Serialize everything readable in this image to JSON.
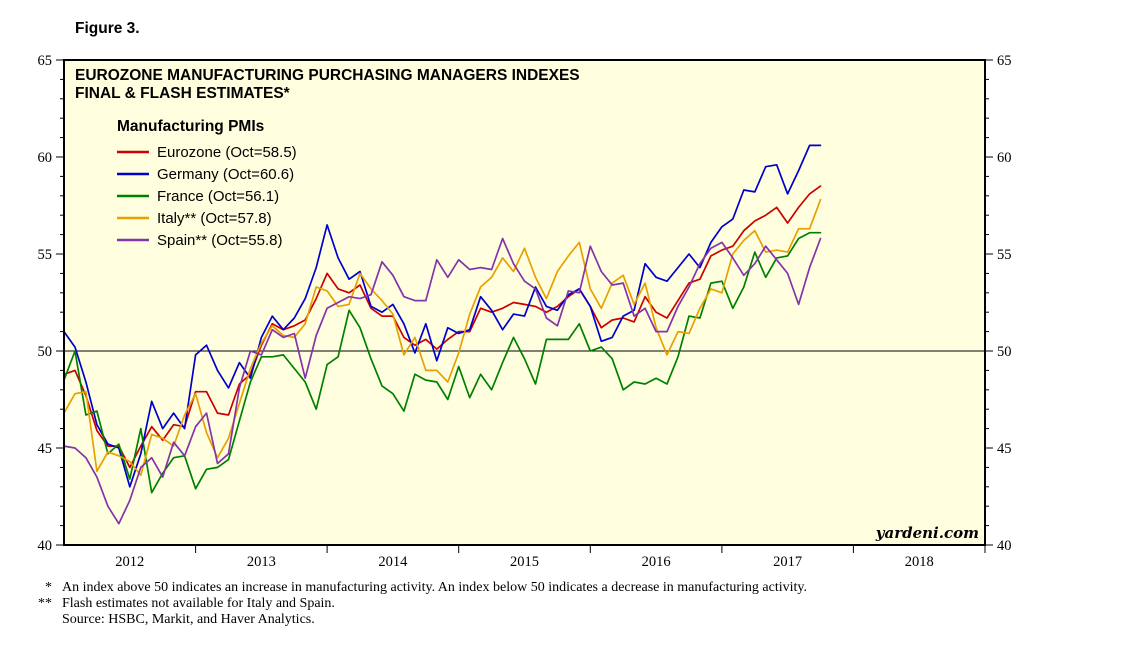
{
  "figure_label": "Figure 3.",
  "chart": {
    "title_line1": "EUROZONE MANUFACTURING PURCHASING MANAGERS INDEXES",
    "title_line2": "FINAL & FLASH ESTIMATES*",
    "legend_title": "Manufacturing PMIs",
    "watermark": "yardeni.com",
    "background": "#ffffe0",
    "frame_color": "#000000"
  },
  "chart_data": {
    "type": "line",
    "title": "Eurozone Manufacturing Purchasing Managers Indexes, Final & Flash Estimates",
    "x_start": "2012-01",
    "x_end": "2017-10",
    "x_frequency": "monthly",
    "x_domain_months": 84,
    "ylim": [
      40,
      65
    ],
    "y_ticks": [
      40,
      45,
      50,
      55,
      60,
      65
    ],
    "x_tick_years": [
      "2012",
      "2013",
      "2014",
      "2015",
      "2016",
      "2017",
      "2018"
    ],
    "reference_line_y": 50,
    "grid": false,
    "legend_position": "top-left-inside",
    "series": [
      {
        "name": "Eurozone (Oct=58.5)",
        "id": "eurozone",
        "color": "#cc0000",
        "values": [
          48.8,
          49.0,
          47.7,
          45.9,
          45.1,
          45.1,
          44.0,
          45.1,
          46.1,
          45.4,
          46.2,
          46.1,
          47.9,
          47.9,
          46.8,
          46.7,
          48.3,
          48.8,
          50.3,
          51.4,
          51.1,
          51.3,
          51.6,
          52.7,
          54.0,
          53.2,
          53.0,
          53.4,
          52.2,
          51.8,
          51.8,
          50.7,
          50.3,
          50.6,
          50.1,
          50.6,
          51.0,
          51.0,
          52.2,
          52.0,
          52.2,
          52.5,
          52.4,
          52.3,
          52.0,
          52.3,
          52.8,
          53.2,
          52.3,
          51.2,
          51.6,
          51.7,
          51.5,
          52.8,
          52.0,
          51.7,
          52.6,
          53.5,
          53.7,
          54.9,
          55.2,
          55.4,
          56.2,
          56.7,
          57.0,
          57.4,
          56.6,
          57.4,
          58.1,
          58.5
        ]
      },
      {
        "name": "Germany (Oct=60.6)",
        "id": "germany",
        "color": "#0000cd",
        "values": [
          51.0,
          50.2,
          48.4,
          46.2,
          45.2,
          45.0,
          43.0,
          44.7,
          47.4,
          46.0,
          46.8,
          46.0,
          49.8,
          50.3,
          49.0,
          48.1,
          49.4,
          48.6,
          50.7,
          51.8,
          51.1,
          51.7,
          52.7,
          54.3,
          56.5,
          54.8,
          53.7,
          54.1,
          52.3,
          52.0,
          52.4,
          51.4,
          49.9,
          51.4,
          49.5,
          51.2,
          50.9,
          51.1,
          52.8,
          52.1,
          51.1,
          51.9,
          51.8,
          53.3,
          52.3,
          52.1,
          52.9,
          53.2,
          52.3,
          50.5,
          50.7,
          51.8,
          52.1,
          54.5,
          53.8,
          53.6,
          54.3,
          55.0,
          54.3,
          55.6,
          56.4,
          56.8,
          58.3,
          58.2,
          59.5,
          59.6,
          58.1,
          59.3,
          60.6,
          60.6
        ]
      },
      {
        "name": "France (Oct=56.1)",
        "id": "france",
        "color": "#008000",
        "values": [
          48.5,
          50.0,
          46.7,
          46.9,
          44.7,
          45.2,
          43.4,
          46.0,
          42.7,
          43.7,
          44.5,
          44.6,
          42.9,
          43.9,
          44.0,
          44.4,
          46.4,
          48.4,
          49.7,
          49.7,
          49.8,
          49.1,
          48.4,
          47.0,
          49.3,
          49.7,
          52.1,
          51.2,
          49.6,
          48.2,
          47.8,
          46.9,
          48.8,
          48.5,
          48.4,
          47.5,
          49.2,
          47.6,
          48.8,
          48.0,
          49.4,
          50.7,
          49.6,
          48.3,
          50.6,
          50.6,
          50.6,
          51.4,
          50.0,
          50.2,
          49.6,
          48.0,
          48.4,
          48.3,
          48.6,
          48.3,
          49.7,
          51.8,
          51.7,
          53.5,
          53.6,
          52.2,
          53.3,
          55.1,
          53.8,
          54.8,
          54.9,
          55.8,
          56.1,
          56.1
        ]
      },
      {
        "name": "Italy** (Oct=57.8)",
        "id": "italy",
        "color": "#e8a000",
        "values": [
          46.8,
          47.8,
          47.9,
          43.8,
          44.8,
          44.6,
          44.3,
          43.6,
          45.7,
          45.5,
          45.1,
          46.7,
          47.8,
          45.8,
          44.5,
          45.5,
          47.3,
          49.1,
          50.4,
          51.3,
          50.8,
          50.7,
          51.4,
          53.3,
          53.1,
          52.3,
          52.4,
          54.0,
          53.2,
          52.6,
          51.9,
          49.8,
          50.7,
          49.0,
          49.0,
          48.4,
          49.9,
          51.9,
          53.3,
          53.8,
          54.8,
          54.1,
          55.3,
          53.8,
          52.7,
          54.1,
          54.9,
          55.6,
          53.2,
          52.2,
          53.5,
          53.9,
          52.4,
          53.5,
          51.2,
          49.8,
          51.0,
          50.9,
          52.2,
          53.2,
          53.0,
          55.0,
          55.7,
          56.2,
          55.1,
          55.2,
          55.1,
          56.3,
          56.3,
          57.8
        ]
      },
      {
        "name": "Spain** (Oct=55.8)",
        "id": "spain",
        "color": "#8533a8",
        "values": [
          45.1,
          45.0,
          44.5,
          43.5,
          42.0,
          41.1,
          42.3,
          44.0,
          44.5,
          43.5,
          45.3,
          44.6,
          46.1,
          46.8,
          44.2,
          44.7,
          48.1,
          50.0,
          49.8,
          51.1,
          50.7,
          50.9,
          48.6,
          50.8,
          52.2,
          52.5,
          52.8,
          52.7,
          52.9,
          54.6,
          53.9,
          52.8,
          52.6,
          52.6,
          54.7,
          53.8,
          54.7,
          54.2,
          54.3,
          54.2,
          55.8,
          54.5,
          53.6,
          53.2,
          51.7,
          51.3,
          53.1,
          53.0,
          55.4,
          54.1,
          53.4,
          53.5,
          51.8,
          52.2,
          51.0,
          51.0,
          52.3,
          53.3,
          54.5,
          55.3,
          55.6,
          54.8,
          53.9,
          54.5,
          55.4,
          54.7,
          54.0,
          52.4,
          54.3,
          55.8
        ]
      }
    ]
  },
  "footnotes": [
    {
      "marker": "*",
      "text": "An index above 50 indicates an increase in manufacturing activity. An index below 50 indicates a decrease in manufacturing activity."
    },
    {
      "marker": "**",
      "text": "Flash estimates not available for Italy and Spain."
    },
    {
      "marker": "",
      "text": "Source: HSBC, Markit, and Haver Analytics."
    }
  ]
}
